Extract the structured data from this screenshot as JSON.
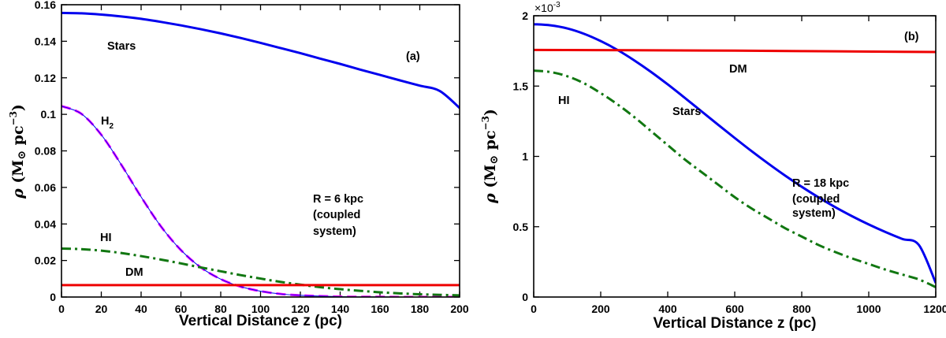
{
  "chart_data": [
    {
      "id": "a",
      "type": "line",
      "panel_label": "(a)",
      "xlabel": "Vertical Distance z (pc)",
      "ylabel": {
        "rho": "ρ",
        "open": " (M",
        "sun": "⊙",
        "unit": " pc",
        "exp": "−3",
        "close": ")"
      },
      "xlim": [
        0,
        200
      ],
      "ylim": [
        0,
        0.16
      ],
      "xticks": [
        0,
        20,
        40,
        60,
        80,
        100,
        120,
        140,
        160,
        180,
        200
      ],
      "xtick_labels": [
        "0",
        "20",
        "40",
        "60",
        "80",
        "100",
        "120",
        "140",
        "160",
        "180",
        "200"
      ],
      "yticks": [
        0,
        0.02,
        0.04,
        0.06,
        0.08,
        0.1,
        0.12,
        0.14,
        0.16
      ],
      "ytick_labels": [
        "0",
        "0.02",
        "0.04",
        "0.06",
        "0.08",
        "0.1",
        "0.12",
        "0.14",
        "0.16"
      ],
      "annotation": [
        "R = 6 kpc",
        "(coupled",
        "system)"
      ],
      "series": [
        {
          "name": "Stars",
          "color": "#0000ee",
          "style": "solid",
          "x": [
            0,
            10,
            20,
            30,
            40,
            50,
            60,
            70,
            80,
            90,
            100,
            110,
            120,
            130,
            140,
            150,
            160,
            170,
            180,
            190,
            200
          ],
          "y": [
            0.1555,
            0.1553,
            0.1546,
            0.1536,
            0.1523,
            0.1506,
            0.1487,
            0.1466,
            0.1443,
            0.1418,
            0.1391,
            0.1363,
            0.1335,
            0.1305,
            0.1276,
            0.1245,
            0.1216,
            0.1186,
            0.1157,
            0.1128,
            0.1035
          ]
        },
        {
          "name": "H2",
          "label_main": "H",
          "label_sub": "2",
          "color": "#ff00ff",
          "style": "dashed",
          "overlay_color": "#0000ee",
          "x": [
            0,
            10,
            20,
            30,
            40,
            50,
            60,
            70,
            80,
            90,
            100,
            110,
            120,
            130,
            140,
            150,
            160,
            170,
            180,
            190,
            200
          ],
          "y": [
            0.1045,
            0.1003,
            0.0888,
            0.0725,
            0.0548,
            0.0386,
            0.0257,
            0.0162,
            0.0098,
            0.0057,
            0.0032,
            0.0017,
            0.0009,
            0.0005,
            0.0002,
            0.0001,
            0.0001,
            0.0,
            0.0,
            0.0,
            0.0
          ]
        },
        {
          "name": "HI",
          "color": "#117711",
          "style": "dashdot",
          "x": [
            0,
            10,
            20,
            30,
            40,
            50,
            60,
            70,
            80,
            90,
            100,
            110,
            120,
            130,
            140,
            150,
            160,
            170,
            180,
            190,
            200
          ],
          "y": [
            0.0265,
            0.0262,
            0.0254,
            0.0241,
            0.0224,
            0.0205,
            0.0184,
            0.0162,
            0.0141,
            0.012,
            0.0101,
            0.0083,
            0.0068,
            0.0054,
            0.0043,
            0.0034,
            0.0026,
            0.002,
            0.0015,
            0.0012,
            0.0009
          ]
        },
        {
          "name": "DM",
          "color": "#ee0000",
          "style": "solid",
          "x": [
            0,
            50,
            100,
            150,
            200
          ],
          "y": [
            0.0065,
            0.0065,
            0.0065,
            0.0065,
            0.0065
          ]
        }
      ]
    },
    {
      "id": "b",
      "type": "line",
      "panel_label": "(b)",
      "xlabel": "Vertical Distance z (pc)",
      "ylabel": {
        "rho": "ρ",
        "open": " (M",
        "sun": "⊙",
        "unit": " pc",
        "exp": "−3",
        "close": ")"
      },
      "scale_multiplier": {
        "base": "×10",
        "exp": "-3"
      },
      "xlim": [
        0,
        1200
      ],
      "ylim": [
        0,
        2
      ],
      "xticks": [
        0,
        200,
        400,
        600,
        800,
        1000,
        1200
      ],
      "xtick_labels": [
        "0",
        "200",
        "400",
        "600",
        "800",
        "1000",
        "1200"
      ],
      "yticks": [
        0,
        0.5,
        1,
        1.5,
        2
      ],
      "ytick_labels": [
        "0",
        "0.5",
        "1",
        "1.5",
        "2"
      ],
      "annotation": [
        "R = 18 kpc",
        "(coupled",
        "system)"
      ],
      "series": [
        {
          "name": "Stars",
          "color": "#0000ee",
          "style": "solid",
          "x": [
            0,
            50,
            100,
            150,
            200,
            250,
            300,
            350,
            400,
            450,
            500,
            550,
            600,
            650,
            700,
            750,
            800,
            850,
            900,
            950,
            1000,
            1050,
            1100,
            1150,
            1200
          ],
          "y": [
            1.94,
            1.932,
            1.91,
            1.872,
            1.82,
            1.757,
            1.683,
            1.601,
            1.512,
            1.418,
            1.322,
            1.226,
            1.131,
            1.038,
            0.949,
            0.864,
            0.784,
            0.709,
            0.639,
            0.575,
            0.516,
            0.462,
            0.413,
            0.369,
            0.1
          ]
        },
        {
          "name": "HI",
          "color": "#117711",
          "style": "dashdot",
          "x": [
            0,
            50,
            100,
            150,
            200,
            250,
            300,
            350,
            400,
            450,
            500,
            550,
            600,
            650,
            700,
            750,
            800,
            850,
            900,
            950,
            1000,
            1050,
            1100,
            1150,
            1200
          ],
          "y": [
            1.61,
            1.6,
            1.57,
            1.52,
            1.45,
            1.37,
            1.28,
            1.18,
            1.08,
            0.98,
            0.89,
            0.8,
            0.71,
            0.63,
            0.56,
            0.49,
            0.43,
            0.37,
            0.32,
            0.275,
            0.235,
            0.195,
            0.16,
            0.125,
            0.07
          ]
        },
        {
          "name": "DM",
          "color": "#ee0000",
          "style": "solid",
          "x": [
            0,
            300,
            600,
            900,
            1200
          ],
          "y": [
            1.757,
            1.755,
            1.752,
            1.747,
            1.742
          ]
        }
      ]
    }
  ]
}
